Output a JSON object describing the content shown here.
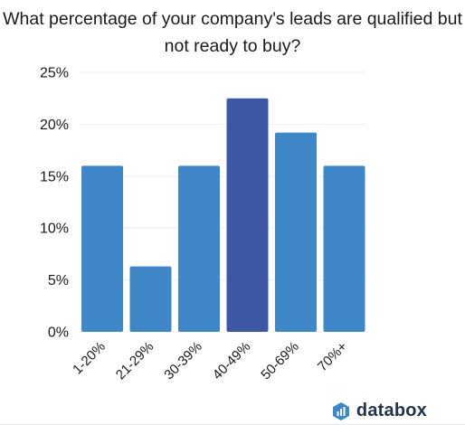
{
  "chart_data": {
    "type": "bar",
    "title": "What percentage of your company's leads are qualified but not ready to buy?",
    "categories": [
      "1-20%",
      "21-29%",
      "30-39%",
      "40-49%",
      "50-69%",
      "70%+"
    ],
    "values": [
      16,
      6.3,
      16,
      22.5,
      19.2,
      16
    ],
    "ylim": [
      0,
      25
    ],
    "yticks": [
      0,
      5,
      10,
      15,
      20,
      25
    ],
    "ytick_labels": [
      "0%",
      "5%",
      "10%",
      "15%",
      "20%",
      "25%"
    ],
    "xlabel": "",
    "ylabel": "",
    "grid": true,
    "colors": {
      "bar": "#3f87c6",
      "highlight": "#3d57a5",
      "grid": "#eeeeee"
    },
    "highlight_index": 3
  },
  "brand": {
    "name": "databox",
    "icon": "databox-logo-icon"
  }
}
